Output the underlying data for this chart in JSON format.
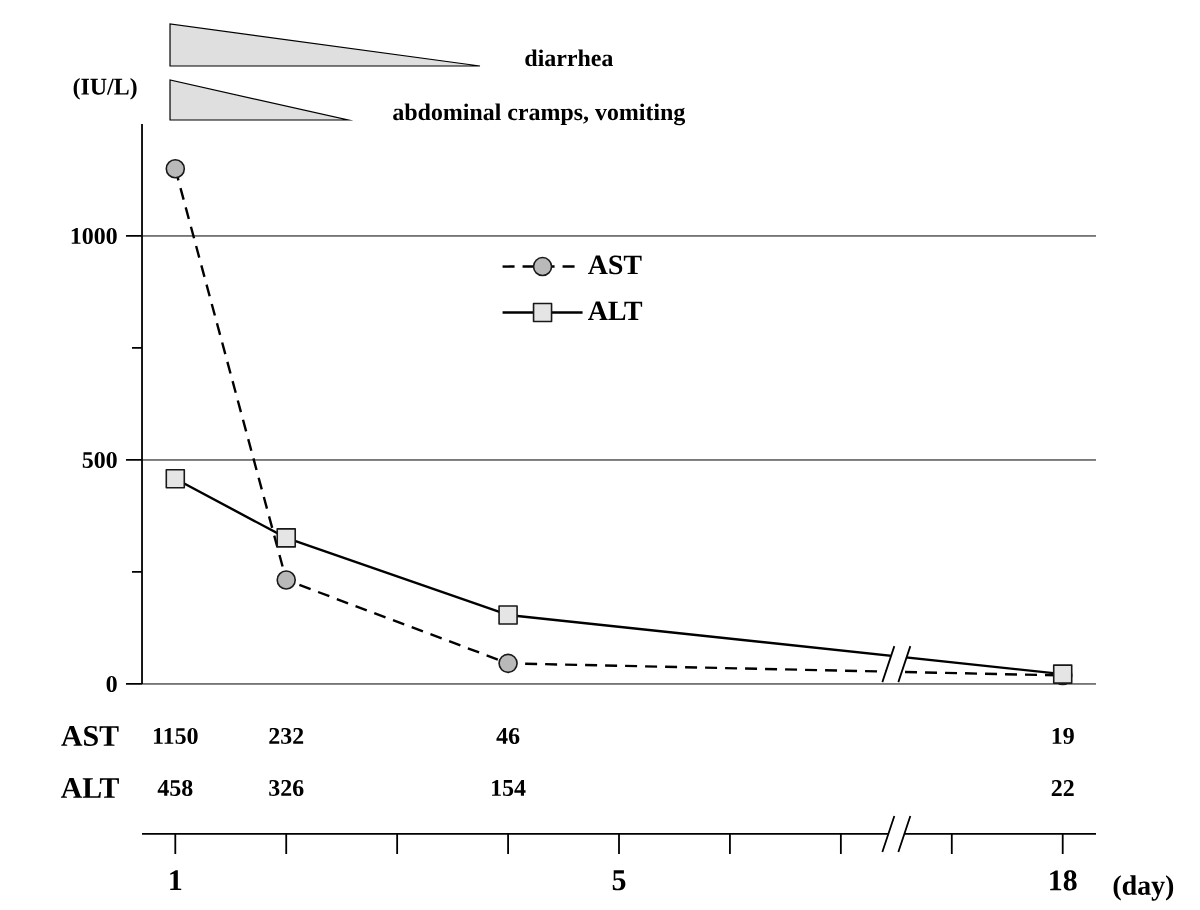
{
  "chart_data": {
    "type": "line",
    "ylabel": "(IU/L)",
    "xlabel": "(day)",
    "categories": [
      "1",
      null,
      null,
      null,
      "5",
      null,
      null,
      null,
      "18"
    ],
    "ylim": [
      0,
      1250
    ],
    "yticks": [
      0,
      {
        "value": 250,
        "label": null
      },
      500,
      {
        "value": 750,
        "label": null
      },
      1000
    ],
    "series": [
      {
        "name": "AST",
        "color": "#000000",
        "values": [
          1150,
          232,
          null,
          46,
          null,
          null,
          null,
          null,
          19
        ],
        "value_labels": [
          "1150",
          "232",
          null,
          "46",
          null,
          null,
          null,
          null,
          "19"
        ],
        "marker": "circle",
        "line_style": "dashed"
      },
      {
        "name": "ALT",
        "color": "#000000",
        "values": [
          458,
          326,
          null,
          154,
          null,
          null,
          null,
          null,
          22
        ],
        "value_labels": [
          "458",
          "326",
          null,
          "154",
          null,
          null,
          null,
          null,
          "22"
        ],
        "marker": "square",
        "line_style": "solid"
      }
    ],
    "grid": "y",
    "legend": "top",
    "annotations": [
      "diarrhea",
      "abdominal cramps, vomiting"
    ]
  }
}
